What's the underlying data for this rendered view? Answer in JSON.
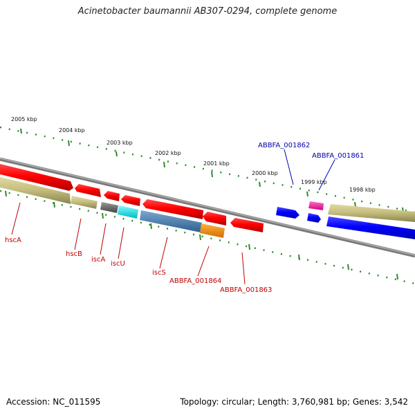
{
  "title": "Acinetobacter baumannii AB307-0294, complete genome",
  "footer": {
    "accession": "Accession: NC_011595",
    "summary": "Topology: circular; Length: 3,760,981 bp; Genes: 3,542"
  },
  "ticks": [
    {
      "label": "2005 kbp"
    },
    {
      "label": "2004 kbp"
    },
    {
      "label": "2003 kbp"
    },
    {
      "label": "2002 kbp"
    },
    {
      "label": "2001 kbp"
    },
    {
      "label": "2000 kbp"
    },
    {
      "label": "1999 kbp"
    },
    {
      "label": "1998 kbp"
    }
  ],
  "genes": [
    {
      "name": "hscA",
      "color": "#e00000"
    },
    {
      "name": "hscB",
      "color": "#e00000"
    },
    {
      "name": "iscA",
      "color": "#e00000"
    },
    {
      "name": "iscU",
      "color": "#e00000"
    },
    {
      "name": "iscS",
      "color": "#e00000"
    },
    {
      "name": "ABBFA_001864",
      "color": "#e00000"
    },
    {
      "name": "ABBFA_001863",
      "color": "#e00000"
    },
    {
      "name": "ABBFA_001862",
      "color": "#0000ff"
    },
    {
      "name": "ABBFA_001861",
      "color": "#0000ff"
    }
  ],
  "colors": {
    "cds": "#e00000",
    "gene": "#b8b070",
    "rRNA_blue": "#0000ff",
    "gray": "#666666",
    "cyan": "#00e0e0",
    "steelblue": "#4682b4",
    "orange": "#ff8c00",
    "magenta": "#ff1493",
    "backbone": "#888888",
    "tick": "#2e8b2e"
  }
}
